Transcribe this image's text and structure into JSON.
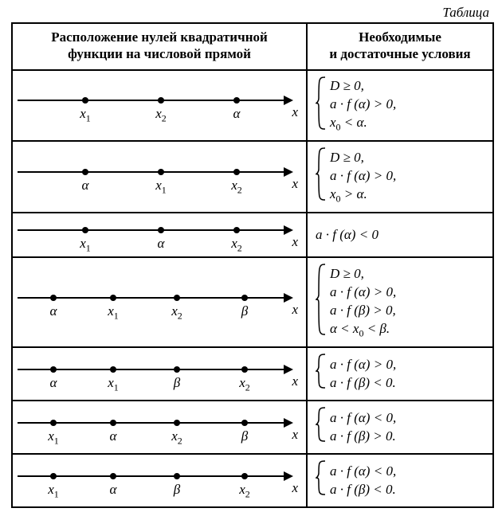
{
  "caption": "Таблица",
  "header_left_line1": "Расположение нулей квадратичной",
  "header_left_line2": "функции на числовой прямой",
  "header_right_line1": "Необходимые",
  "header_right_line2": "и достаточные условия",
  "axis_label": "x",
  "rows": [
    {
      "points": [
        {
          "pos": 85,
          "label_html": "x<sub>1</sub>"
        },
        {
          "pos": 180,
          "label_html": "x<sub>2</sub>"
        },
        {
          "pos": 275,
          "label_html": "α"
        }
      ],
      "conditions_html": [
        "D ≥ 0,",
        "a · f (α) &gt; 0,",
        "x<sub>0</sub> &lt; α."
      ]
    },
    {
      "points": [
        {
          "pos": 85,
          "label_html": "α"
        },
        {
          "pos": 180,
          "label_html": "x<sub>1</sub>"
        },
        {
          "pos": 275,
          "label_html": "x<sub>2</sub>"
        }
      ],
      "conditions_html": [
        "D ≥ 0,",
        "a · f (α) &gt; 0,",
        "x<sub>0</sub> &gt; α."
      ]
    },
    {
      "points": [
        {
          "pos": 85,
          "label_html": "x<sub>1</sub>"
        },
        {
          "pos": 180,
          "label_html": "α"
        },
        {
          "pos": 275,
          "label_html": "x<sub>2</sub>"
        }
      ],
      "conditions_html": [
        "a · f (α) &lt; 0"
      ],
      "no_brace": true
    },
    {
      "points": [
        {
          "pos": 45,
          "label_html": "α"
        },
        {
          "pos": 120,
          "label_html": "x<sub>1</sub>"
        },
        {
          "pos": 200,
          "label_html": "x<sub>2</sub>"
        },
        {
          "pos": 285,
          "label_html": "β"
        }
      ],
      "conditions_html": [
        "D ≥ 0,",
        "a · f (α) &gt; 0,",
        "a · f (β) &gt; 0,",
        "α &lt; x<sub>0</sub> &lt; β."
      ]
    },
    {
      "points": [
        {
          "pos": 45,
          "label_html": "α"
        },
        {
          "pos": 120,
          "label_html": "x<sub>1</sub>"
        },
        {
          "pos": 200,
          "label_html": "β"
        },
        {
          "pos": 285,
          "label_html": "x<sub>2</sub>"
        }
      ],
      "conditions_html": [
        "a · f (α) &gt; 0,",
        "a · f (β) &lt; 0."
      ]
    },
    {
      "points": [
        {
          "pos": 45,
          "label_html": "x<sub>1</sub>"
        },
        {
          "pos": 120,
          "label_html": "α"
        },
        {
          "pos": 200,
          "label_html": "x<sub>2</sub>"
        },
        {
          "pos": 285,
          "label_html": "β"
        }
      ],
      "conditions_html": [
        "a · f (α) &lt; 0,",
        "a · f (β) &gt; 0."
      ]
    },
    {
      "points": [
        {
          "pos": 45,
          "label_html": "x<sub>1</sub>"
        },
        {
          "pos": 120,
          "label_html": "α"
        },
        {
          "pos": 200,
          "label_html": "β"
        },
        {
          "pos": 285,
          "label_html": "x<sub>2</sub>"
        }
      ],
      "conditions_html": [
        "a · f (α) &lt; 0,",
        "a · f (β) &lt; 0."
      ]
    }
  ]
}
